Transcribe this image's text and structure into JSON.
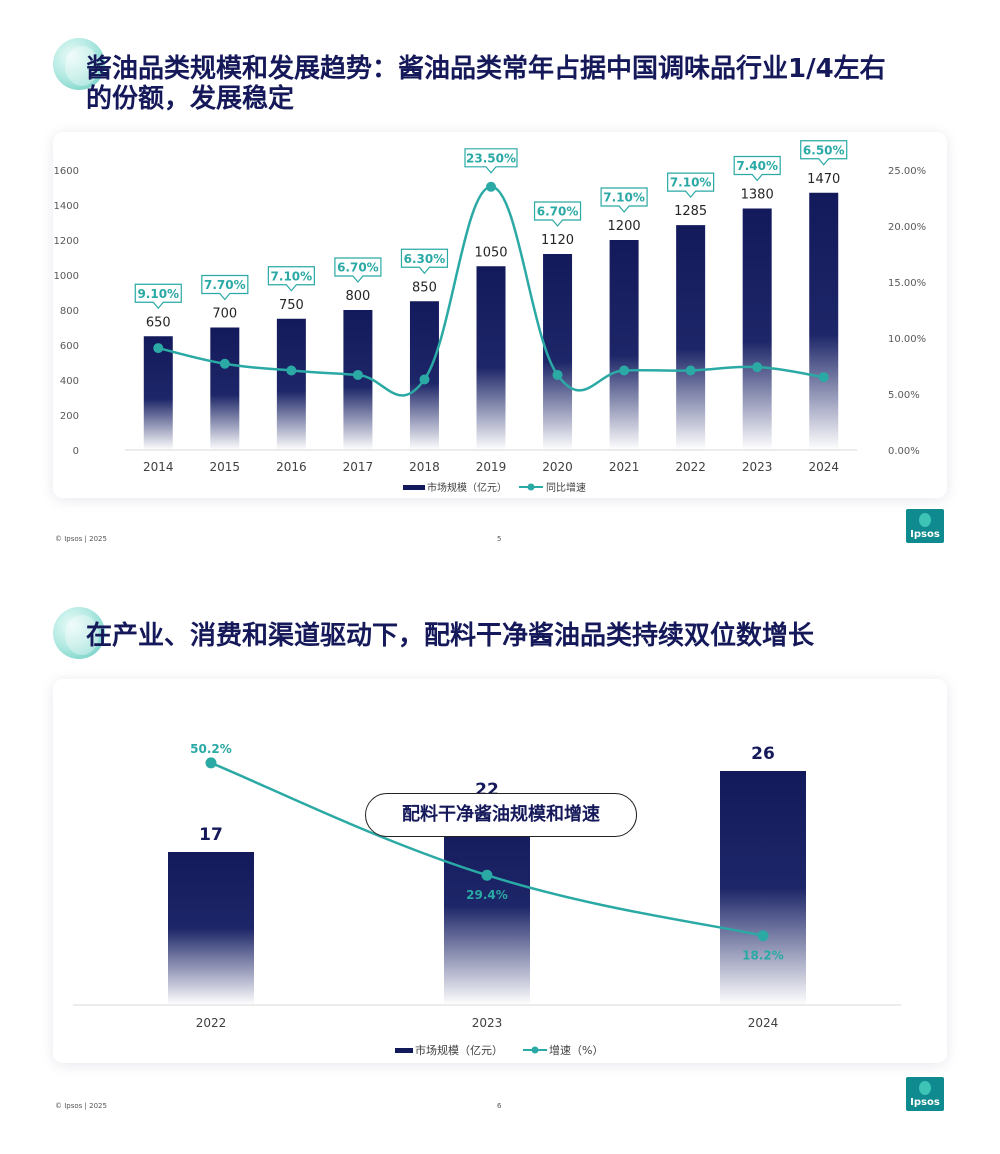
{
  "colors": {
    "bar": "#131a5c",
    "line": "#2aa9a5",
    "title": "#15195a",
    "label_box": "#2aa9a5"
  },
  "slide1": {
    "title_line1": "酱油品类规模和发展趋势：酱油品类常年占据中国调味品行业1/4左右",
    "title_line2": "的份额，发展稳定",
    "footer": "© Ipsos | 2025",
    "page_number": "5",
    "logo_text": "Ipsos"
  },
  "slide2": {
    "title": "在产业、消费和渠道驱动下，配料干净酱油品类持续双位数增长",
    "footer": "© Ipsos | 2025",
    "page_number": "6",
    "logo_text": "Ipsos"
  },
  "chart_data": [
    {
      "type": "bar",
      "categories": [
        "2014",
        "2015",
        "2016",
        "2017",
        "2018",
        "2019",
        "2020",
        "2021",
        "2022",
        "2023",
        "2024"
      ],
      "series": [
        {
          "name": "市场规模（亿元）",
          "type": "bar",
          "axis": "left",
          "values": [
            650,
            700,
            750,
            800,
            850,
            1050,
            1120,
            1200,
            1285,
            1380,
            1470
          ]
        },
        {
          "name": "同比增速",
          "type": "line",
          "axis": "right",
          "values": [
            9.1,
            7.7,
            7.1,
            6.7,
            6.3,
            23.5,
            6.7,
            7.1,
            7.1,
            7.4,
            6.5
          ],
          "labels": [
            "9.10%",
            "7.70%",
            "7.10%",
            "6.70%",
            "6.30%",
            "23.50%",
            "6.70%",
            "7.10%",
            "7.10%",
            "7.40%",
            "6.50%"
          ]
        }
      ],
      "ylim": [
        0,
        1600
      ],
      "yticks": [
        "0",
        "200",
        "400",
        "600",
        "800",
        "1000",
        "1200",
        "1400",
        "1600"
      ],
      "y2lim": [
        0,
        25
      ],
      "y2ticks": [
        "0.00%",
        "5.00%",
        "10.00%",
        "15.00%",
        "20.00%",
        "25.00%"
      ],
      "legend_position": "bottom"
    },
    {
      "type": "bar",
      "title": "配料干净酱油规模和增速",
      "categories": [
        "2022",
        "2023",
        "2024"
      ],
      "series": [
        {
          "name": "市场规模（亿元）",
          "type": "bar",
          "values": [
            17,
            22,
            26
          ]
        },
        {
          "name": "增速（%）",
          "type": "line",
          "values": [
            50.2,
            29.4,
            18.2
          ],
          "labels": [
            "50.2%",
            "29.4%",
            "18.2%"
          ]
        }
      ],
      "legend_position": "bottom"
    }
  ]
}
